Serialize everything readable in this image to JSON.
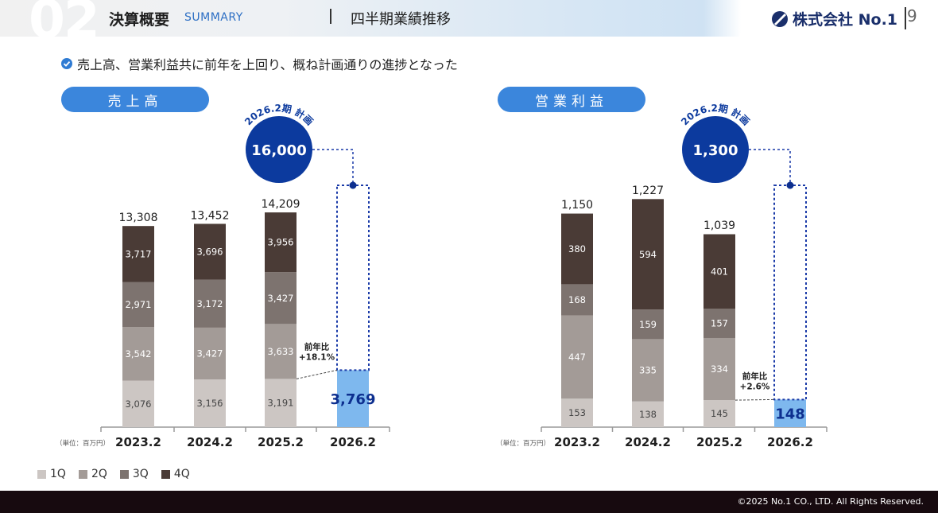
{
  "header": {
    "section_number": "02",
    "title": "決算概要",
    "subtitle": "SUMMARY",
    "page_title": "四半期業績推移",
    "logo_text": "株式会社 No.1",
    "page_number": "9"
  },
  "summary": {
    "text": "売上高、営業利益共に前年を上回り、概ね計画通りの進捗となった"
  },
  "legend": [
    {
      "label": "1Q",
      "color": "#ccc6c3"
    },
    {
      "label": "2Q",
      "color": "#a39b97"
    },
    {
      "label": "3Q",
      "color": "#7d736f"
    },
    {
      "label": "4Q",
      "color": "#4a3b36"
    }
  ],
  "footer": {
    "copyright": "©2025 No.1 CO., LTD. All Rights Reserved."
  },
  "chart_data": [
    {
      "type": "bar",
      "stacked": true,
      "title": "売上高",
      "unit_label": "（単位：百万円）",
      "categories": [
        "2023.2",
        "2024.2",
        "2025.2",
        "2026.2"
      ],
      "series": [
        {
          "name": "1Q",
          "values": [
            3076,
            3156,
            3191,
            3769
          ]
        },
        {
          "name": "2Q",
          "values": [
            3542,
            3427,
            3633,
            null
          ]
        },
        {
          "name": "3Q",
          "values": [
            2971,
            3172,
            3427,
            null
          ]
        },
        {
          "name": "4Q",
          "values": [
            3717,
            3696,
            3956,
            null
          ]
        }
      ],
      "value_labels": {
        "1Q": [
          "3,076",
          "3,156",
          "3,191",
          "3,769"
        ],
        "2Q": [
          "3,542",
          "3,427",
          "3,633",
          ""
        ],
        "3Q": [
          "2,971",
          "3,172",
          "3,427",
          ""
        ],
        "4Q": [
          "3,717",
          "3,696",
          "3,956",
          ""
        ]
      },
      "totals": [
        13308,
        13452,
        14209
      ],
      "total_labels": [
        "13,308",
        "13,452",
        "14,209"
      ],
      "plan": {
        "value": 16000,
        "label": "16,000",
        "caption": "2026.2期 計画"
      },
      "yoy": {
        "line1": "前年比",
        "line2": "+18.1%"
      },
      "ylim": [
        0,
        16600
      ]
    },
    {
      "type": "bar",
      "stacked": true,
      "title": "営業利益",
      "unit_label": "（単位：百万円）",
      "categories": [
        "2023.2",
        "2024.2",
        "2025.2",
        "2026.2"
      ],
      "series": [
        {
          "name": "1Q",
          "values": [
            153,
            138,
            145,
            148
          ]
        },
        {
          "name": "2Q",
          "values": [
            447,
            335,
            334,
            null
          ]
        },
        {
          "name": "3Q",
          "values": [
            168,
            159,
            157,
            null
          ]
        },
        {
          "name": "4Q",
          "values": [
            380,
            594,
            401,
            null
          ]
        }
      ],
      "value_labels": {
        "1Q": [
          "153",
          "138",
          "145",
          "148"
        ],
        "2Q": [
          "447",
          "335",
          "334",
          ""
        ],
        "3Q": [
          "168",
          "159",
          "157",
          ""
        ],
        "4Q": [
          "380",
          "594",
          "401",
          ""
        ]
      },
      "totals": [
        1150,
        1227,
        1039
      ],
      "total_labels": [
        "1,150",
        "1,227",
        "1,039"
      ],
      "plan": {
        "value": 1300,
        "label": "1,300",
        "caption": "2026.2期 計画"
      },
      "yoy": {
        "line1": "前年比",
        "line2": "+2.6%"
      },
      "ylim": [
        0,
        1320
      ]
    }
  ]
}
